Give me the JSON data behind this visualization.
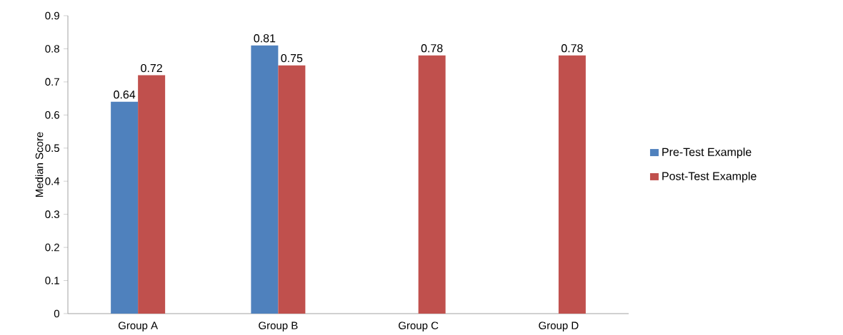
{
  "chart_data": {
    "type": "bar",
    "ylabel": "Median Score",
    "categories": [
      "Group A",
      "Group B",
      "Group C",
      "Group D"
    ],
    "series": [
      {
        "name": "Pre-Test Example",
        "color": "#4f81bd",
        "values": [
          0.64,
          0.81,
          null,
          null
        ]
      },
      {
        "name": "Post-Test Example",
        "color": "#c0504d",
        "values": [
          0.72,
          0.75,
          0.78,
          0.78
        ]
      }
    ],
    "ylim": [
      0,
      0.9
    ],
    "yticks": [
      0,
      0.1,
      0.2,
      0.3,
      0.4,
      0.5,
      0.6,
      0.7,
      0.8,
      0.9
    ],
    "data_labels": true,
    "grid": false,
    "legend": "right"
  }
}
